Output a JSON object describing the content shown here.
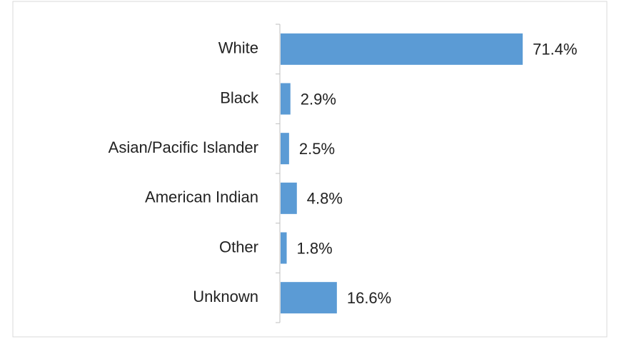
{
  "chart_data": {
    "type": "bar",
    "orientation": "horizontal",
    "categories": [
      "White",
      "Black",
      "Asian/Pacific Islander",
      "American Indian",
      "Other",
      "Unknown"
    ],
    "values": [
      71.4,
      2.9,
      2.5,
      4.8,
      1.8,
      16.6
    ],
    "value_labels": [
      "71.4%",
      "2.9%",
      "2.5%",
      "4.8%",
      "1.8%",
      "16.6%"
    ],
    "color": "#5b9bd5"
  }
}
